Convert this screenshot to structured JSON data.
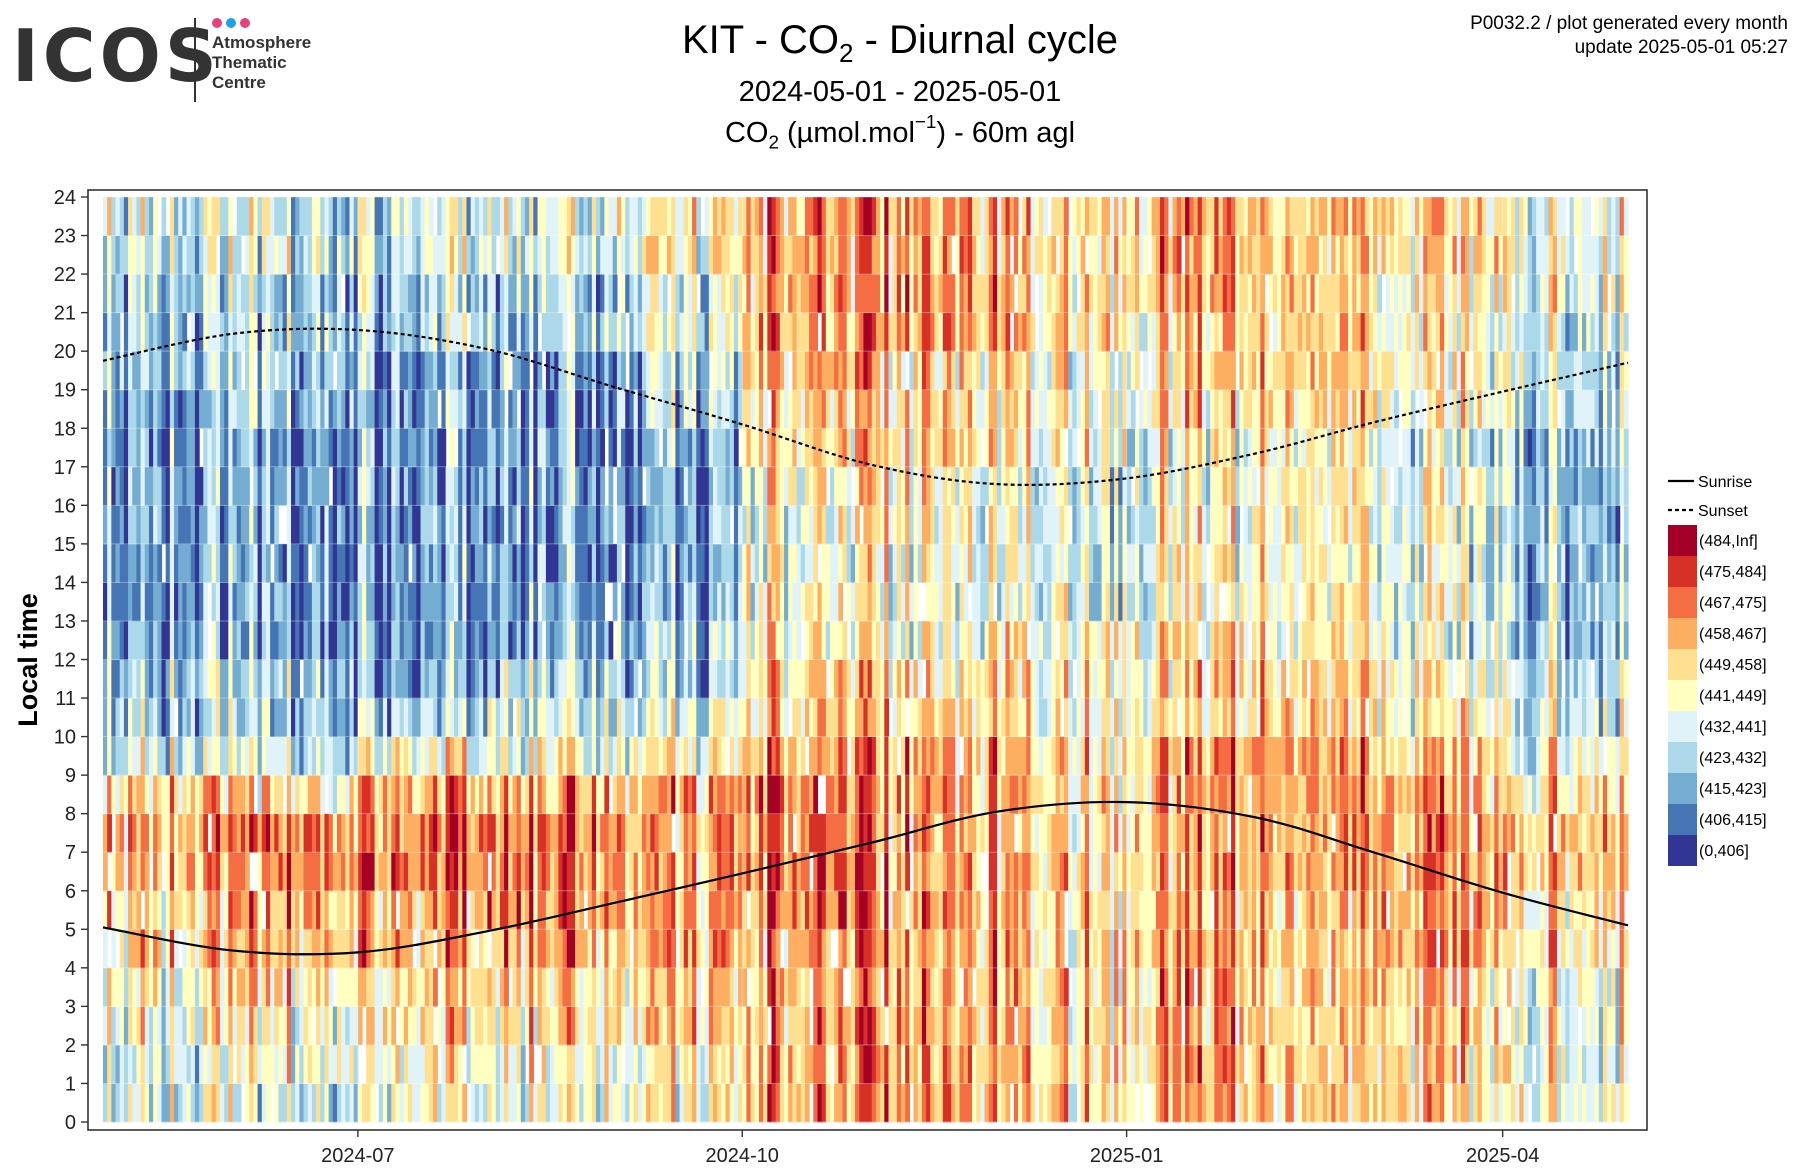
{
  "logo": {
    "wordmark": "ICOS",
    "line1": "Atmosphere",
    "line2": "Thematic",
    "line3": "Centre",
    "dot_colors": [
      "#e8417a",
      "#1aa3e8",
      "#e8417a"
    ]
  },
  "header": {
    "title_pre": "KIT - CO",
    "title_sub": "2",
    "title_post": " - Diurnal cycle",
    "subtitle": "2024-05-01 - 2025-05-01",
    "unit_pre": "CO",
    "unit_sub": "2",
    "unit_mid": " (µmol.mol",
    "unit_sup": "−1",
    "unit_post": ") - 60m agl"
  },
  "meta": {
    "line1": "P0032.2 / plot generated every month",
    "line2": "update  2025-05-01 05:27"
  },
  "chart_data": {
    "type": "heatmap",
    "x_range": [
      "2024-05-01",
      "2025-05-01"
    ],
    "x_ticks": [
      "2024-07",
      "2024-10",
      "2025-01",
      "2025-04"
    ],
    "ylabel": "Local time",
    "ylim": [
      0,
      24
    ],
    "y_ticks": [
      0,
      1,
      2,
      3,
      4,
      5,
      6,
      7,
      8,
      9,
      10,
      11,
      12,
      13,
      14,
      15,
      16,
      17,
      18,
      19,
      20,
      21,
      22,
      23,
      24
    ],
    "grid": true,
    "legend_position": "right",
    "bins": [
      {
        "label": "(484,Inf]",
        "color": "#a50026"
      },
      {
        "label": "(475,484]",
        "color": "#d73027"
      },
      {
        "label": "(467,475]",
        "color": "#f46d43"
      },
      {
        "label": "(458,467]",
        "color": "#fdae61"
      },
      {
        "label": "(449,458]",
        "color": "#fee090"
      },
      {
        "label": "(441,449]",
        "color": "#ffffbf"
      },
      {
        "label": "(432,441]",
        "color": "#e0f3f8"
      },
      {
        "label": "(423,432]",
        "color": "#abd9e9"
      },
      {
        "label": "(415,423]",
        "color": "#74add1"
      },
      {
        "label": "(406,415]",
        "color": "#4575b4"
      },
      {
        "label": "(0,406]",
        "color": "#313695"
      }
    ],
    "monthly_hourly_bin_index": {
      "months": [
        "2024-05",
        "2024-06",
        "2024-07",
        "2024-08",
        "2024-09",
        "2024-10",
        "2024-11",
        "2024-12",
        "2025-01",
        "2025-02",
        "2025-03",
        "2025-04"
      ],
      "hours_0_to_23": [
        [
          6,
          6,
          5,
          5,
          4,
          4,
          3,
          3,
          4,
          6,
          7,
          7,
          8,
          8,
          8,
          8,
          8,
          8,
          8,
          7,
          7,
          7,
          6,
          6
        ],
        [
          6,
          5,
          5,
          4,
          3,
          3,
          2,
          2,
          4,
          6,
          7,
          7,
          8,
          8,
          8,
          8,
          8,
          8,
          7,
          7,
          7,
          7,
          6,
          6
        ],
        [
          5,
          5,
          4,
          4,
          3,
          3,
          2,
          2,
          3,
          5,
          7,
          8,
          8,
          8,
          8,
          8,
          8,
          8,
          8,
          8,
          7,
          7,
          6,
          6
        ],
        [
          5,
          5,
          4,
          4,
          3,
          2,
          2,
          2,
          3,
          5,
          6,
          7,
          8,
          8,
          8,
          8,
          8,
          8,
          8,
          8,
          7,
          7,
          6,
          6
        ],
        [
          5,
          5,
          4,
          4,
          3,
          3,
          3,
          3,
          3,
          5,
          6,
          7,
          7,
          8,
          8,
          8,
          8,
          8,
          7,
          7,
          6,
          6,
          5,
          5
        ],
        [
          3,
          3,
          3,
          3,
          3,
          2,
          2,
          2,
          2,
          3,
          4,
          4,
          5,
          5,
          5,
          5,
          5,
          4,
          4,
          3,
          3,
          3,
          3,
          3
        ],
        [
          3,
          3,
          3,
          3,
          3,
          3,
          3,
          3,
          3,
          3,
          4,
          4,
          5,
          5,
          5,
          5,
          5,
          4,
          4,
          4,
          3,
          3,
          3,
          3
        ],
        [
          4,
          4,
          4,
          4,
          4,
          4,
          4,
          4,
          4,
          4,
          5,
          5,
          5,
          6,
          6,
          6,
          6,
          5,
          5,
          5,
          4,
          4,
          4,
          4
        ],
        [
          3,
          3,
          3,
          3,
          3,
          3,
          3,
          3,
          3,
          3,
          4,
          4,
          4,
          5,
          5,
          5,
          5,
          5,
          4,
          4,
          4,
          3,
          3,
          3
        ],
        [
          4,
          4,
          4,
          4,
          4,
          4,
          3,
          3,
          3,
          3,
          4,
          4,
          5,
          5,
          5,
          5,
          5,
          5,
          4,
          4,
          4,
          4,
          4,
          4
        ],
        [
          4,
          4,
          4,
          4,
          3,
          3,
          3,
          3,
          3,
          4,
          5,
          5,
          6,
          6,
          6,
          6,
          6,
          6,
          5,
          5,
          5,
          5,
          4,
          4
        ],
        [
          5,
          5,
          5,
          5,
          4,
          4,
          3,
          3,
          4,
          5,
          6,
          6,
          7,
          7,
          7,
          7,
          7,
          7,
          6,
          6,
          6,
          5,
          5,
          5
        ]
      ]
    },
    "series": [
      {
        "name": "Sunrise",
        "style": "solid",
        "points": [
          [
            "2024-05-01",
            5.05
          ],
          [
            "2024-06-01",
            4.45
          ],
          [
            "2024-07-01",
            4.4
          ],
          [
            "2024-08-01",
            4.95
          ],
          [
            "2024-09-01",
            5.7
          ],
          [
            "2024-10-01",
            6.45
          ],
          [
            "2024-11-01",
            7.25
          ],
          [
            "2024-12-01",
            8.05
          ],
          [
            "2025-01-01",
            8.3
          ],
          [
            "2025-02-01",
            7.9
          ],
          [
            "2025-03-01",
            7.0
          ],
          [
            "2025-04-01",
            5.95
          ],
          [
            "2025-05-01",
            5.1
          ]
        ]
      },
      {
        "name": "Sunset",
        "style": "dashed",
        "points": [
          [
            "2024-05-01",
            19.75
          ],
          [
            "2024-06-01",
            20.45
          ],
          [
            "2024-07-01",
            20.55
          ],
          [
            "2024-08-01",
            20.05
          ],
          [
            "2024-09-01",
            19.05
          ],
          [
            "2024-10-01",
            18.1
          ],
          [
            "2024-11-01",
            17.05
          ],
          [
            "2024-12-01",
            16.55
          ],
          [
            "2025-01-01",
            16.7
          ],
          [
            "2025-02-01",
            17.35
          ],
          [
            "2025-03-01",
            18.15
          ],
          [
            "2025-04-01",
            18.95
          ],
          [
            "2025-05-01",
            19.7
          ]
        ]
      }
    ]
  }
}
